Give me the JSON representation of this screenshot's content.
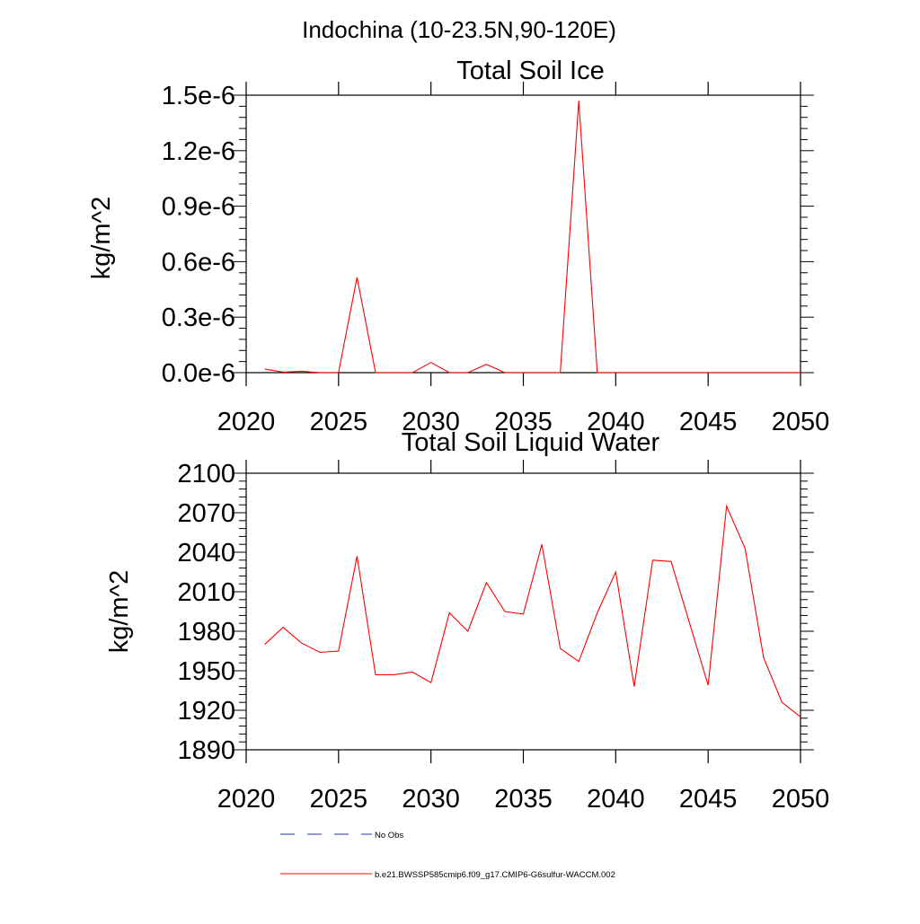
{
  "page_title": "Indochina (10-23.5N,90-120E)",
  "colors": {
    "series": "#ff0000",
    "obs": "#1f3aa8",
    "axis": "#000000"
  },
  "legend": {
    "placement": "bottom",
    "entries": [
      {
        "label": "No Obs",
        "style": "dashed",
        "color": "#1f3aa8"
      },
      {
        "label": "b.e21.BWSSP585cmip6.f09_g17.CMIP6-G6sulfur-WACCM.002",
        "style": "solid",
        "color": "#ff0000"
      }
    ]
  },
  "chart_data": [
    {
      "type": "line",
      "title": "Total Soil Ice",
      "xlabel": "",
      "ylabel": "kg/m^2",
      "xlim": [
        2020,
        2050
      ],
      "ylim": [
        0,
        1.5e-06
      ],
      "xticks": [
        2020,
        2025,
        2030,
        2035,
        2040,
        2045,
        2050
      ],
      "xtick_labels": [
        "2020",
        "2025",
        "2030",
        "2035",
        "2040",
        "2045",
        "2050"
      ],
      "yticks": [
        0,
        3e-07,
        6e-07,
        9e-07,
        1.2e-06,
        1.5e-06
      ],
      "ytick_labels": [
        "0.0e-6",
        "0.3e-6",
        "0.6e-6",
        "0.9e-6",
        "1.2e-6",
        "1.5e-6"
      ],
      "grid": false,
      "series": [
        {
          "name": "b.e21.BWSSP585cmip6.f09_g17.CMIP6-G6sulfur-WACCM.002",
          "color": "#ff0000",
          "x": [
            2021,
            2022,
            2023,
            2024,
            2025,
            2026,
            2027,
            2028,
            2029,
            2030,
            2031,
            2032,
            2033,
            2034,
            2035,
            2036,
            2037,
            2038,
            2039,
            2040,
            2041,
            2042,
            2043,
            2044,
            2045,
            2046,
            2047,
            2048,
            2049,
            2050
          ],
          "values": [
            2e-08,
            3e-09,
            8e-09,
            0.0,
            0.0,
            5.15e-07,
            0.0,
            0.0,
            0.0,
            5.5e-08,
            0.0,
            0.0,
            4.5e-08,
            0.0,
            0.0,
            0.0,
            0.0,
            1.47e-06,
            0.0,
            0.0,
            0.0,
            0.0,
            0.0,
            0.0,
            0.0,
            0.0,
            0.0,
            0.0,
            0.0,
            0.0
          ]
        }
      ]
    },
    {
      "type": "line",
      "title": "Total Soil Liquid Water",
      "xlabel": "",
      "ylabel": "kg/m^2",
      "xlim": [
        2020,
        2050
      ],
      "ylim": [
        1890,
        2100
      ],
      "xticks": [
        2020,
        2025,
        2030,
        2035,
        2040,
        2045,
        2050
      ],
      "xtick_labels": [
        "2020",
        "2025",
        "2030",
        "2035",
        "2040",
        "2045",
        "2050"
      ],
      "yticks": [
        1890,
        1920,
        1950,
        1980,
        2010,
        2040,
        2070,
        2100
      ],
      "ytick_labels": [
        "1890",
        "1920",
        "1950",
        "1980",
        "2010",
        "2040",
        "2070",
        "2100"
      ],
      "grid": false,
      "series": [
        {
          "name": "b.e21.BWSSP585cmip6.f09_g17.CMIP6-G6sulfur-WACCM.002",
          "color": "#ff0000",
          "x": [
            2021,
            2022,
            2023,
            2024,
            2025,
            2026,
            2027,
            2028,
            2029,
            2030,
            2031,
            2032,
            2033,
            2034,
            2035,
            2036,
            2037,
            2038,
            2039,
            2040,
            2041,
            2042,
            2043,
            2044,
            2045,
            2046,
            2047,
            2048,
            2049,
            2050
          ],
          "values": [
            1970,
            1983,
            1971,
            1964,
            1965,
            2037,
            1947,
            1947,
            1949,
            1941,
            1994,
            1980,
            2017,
            1995,
            1993,
            2046,
            1967,
            1957,
            1994,
            2025,
            1938,
            2034,
            2033,
            1986,
            1939,
            2075,
            2043,
            1960,
            1926,
            1915
          ]
        }
      ]
    }
  ]
}
